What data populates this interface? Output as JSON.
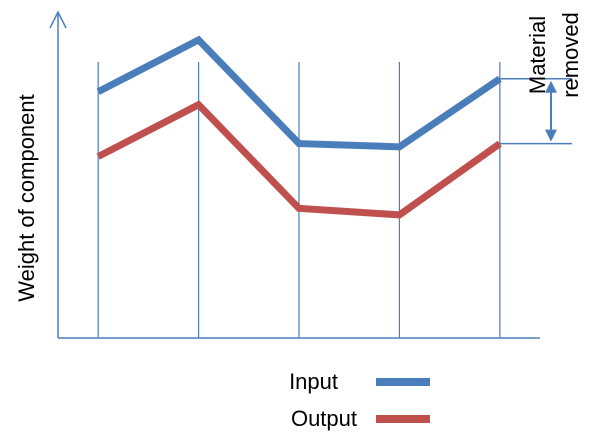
{
  "chart_data": {
    "type": "line",
    "x": [
      1,
      2,
      3,
      4,
      5
    ],
    "series": [
      {
        "name": "Input",
        "values": [
          7.6,
          9.2,
          6.0,
          5.9,
          8.0
        ],
        "color": "#4a7ebb"
      },
      {
        "name": "Output",
        "values": [
          5.6,
          7.2,
          4.0,
          3.8,
          6.0
        ],
        "color": "#c0504d"
      }
    ],
    "ylabel": "Weight of component",
    "xlabel": "",
    "xlim": [
      0.6,
      5.4
    ],
    "ylim": [
      0,
      10
    ],
    "grid": "vertical",
    "legend": "bottom-center",
    "annotation": {
      "line1": "Material",
      "line2": "removed",
      "color": "#4a7ebb"
    }
  }
}
